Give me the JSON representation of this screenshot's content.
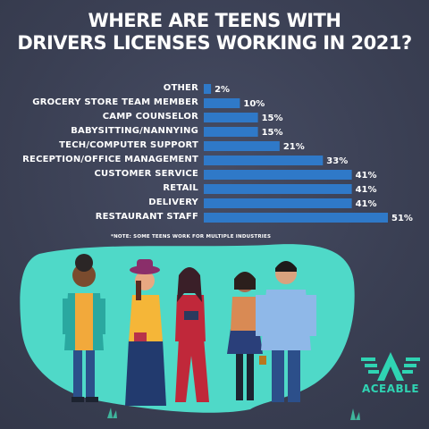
{
  "header": {
    "title_line1": "WHERE ARE TEENS WITH",
    "title_line2": "DRIVERS LICENSES WORKING IN 2021?"
  },
  "chart_data": {
    "type": "bar",
    "orientation": "horizontal",
    "categories": [
      "OTHER",
      "GROCERY STORE TEAM MEMBER",
      "CAMP COUNSELOR",
      "BABYSITTING/NANNYING",
      "TECH/COMPUTER SUPPORT",
      "RECEPTION/OFFICE MANAGEMENT",
      "CUSTOMER SERVICE",
      "RETAIL",
      "DELIVERY",
      "RESTAURANT STAFF"
    ],
    "values": [
      2,
      10,
      15,
      15,
      21,
      33,
      41,
      41,
      41,
      51
    ],
    "value_labels": [
      "2%",
      "10%",
      "15%",
      "15%",
      "21%",
      "33%",
      "41%",
      "41%",
      "41%",
      "51%"
    ],
    "unit": "%",
    "bar_color": "#2f79c8",
    "grid": false,
    "legend": "none"
  },
  "note": "*NOTE: SOME TEENS WORK FOR MULTIPLE INDUSTRIES",
  "logo": {
    "text": "ACEABLE",
    "color": "#2fd4b3"
  },
  "colors": {
    "background": "#3d4257",
    "blob": "#4fd9c8",
    "bar": "#2f79c8",
    "text": "#ffffff"
  }
}
